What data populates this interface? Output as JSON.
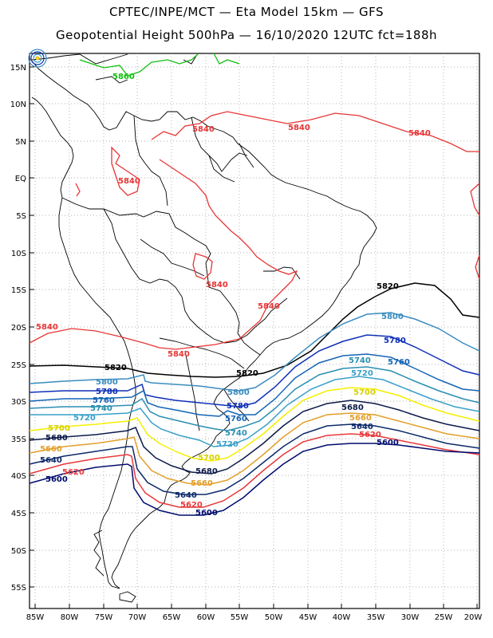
{
  "header": {
    "title_line1": "CPTEC/INPE/MCT —  Eta Model 15km — GFS",
    "title_line2": "Geopotential Height 500hPa — 16/10/2020 12UTC fct=188h"
  },
  "axes": {
    "lat_labels": [
      "15N",
      "10N",
      "5N",
      "EQ",
      "5S",
      "10S",
      "15S",
      "20S",
      "25S",
      "30S",
      "35S",
      "40S",
      "45S",
      "50S",
      "55S"
    ],
    "lon_labels": [
      "85W",
      "80W",
      "75W",
      "70W",
      "65W",
      "60W",
      "55W",
      "50W",
      "45W",
      "40W",
      "35W",
      "30W",
      "25W",
      "20W"
    ]
  },
  "contours": [
    {
      "level": "5600",
      "color": "#000b6e"
    },
    {
      "level": "5620",
      "color": "#e8393b"
    },
    {
      "level": "5640",
      "color": "#0c2a6a"
    },
    {
      "level": "5660",
      "color": "#e2a02a"
    },
    {
      "level": "5680",
      "color": "#0d1b4a"
    },
    {
      "level": "5700",
      "color": "#f5ef00"
    },
    {
      "level": "5720",
      "color": "#3aa0c9"
    },
    {
      "level": "5740",
      "color": "#2a8fb0"
    },
    {
      "level": "5760",
      "color": "#1565b5"
    },
    {
      "level": "5780",
      "color": "#0f2fb8"
    },
    {
      "level": "5800",
      "color": "#3a8cbf"
    },
    {
      "level": "5820",
      "color": "#000000"
    },
    {
      "level": "5840",
      "color": "#e83535"
    },
    {
      "level": "5860",
      "color": "#10c010"
    }
  ],
  "contour_labels": [
    {
      "text": "5860",
      "color": "#10c010"
    },
    {
      "text": "5840",
      "color": "#e83535"
    },
    {
      "text": "5820",
      "color": "#000000"
    },
    {
      "text": "5800",
      "color": "#3a8cbf"
    },
    {
      "text": "5780",
      "color": "#0f2fb8"
    },
    {
      "text": "5760",
      "color": "#1565b5"
    },
    {
      "text": "5740",
      "color": "#2a8fb0"
    },
    {
      "text": "5720",
      "color": "#3aa0c9"
    },
    {
      "text": "5700",
      "color": "#d8d000"
    },
    {
      "text": "5680",
      "color": "#0d1b4a"
    },
    {
      "text": "5660",
      "color": "#e2a02a"
    },
    {
      "text": "5640",
      "color": "#0c2a6a"
    },
    {
      "text": "5620",
      "color": "#e8393b"
    },
    {
      "text": "5600",
      "color": "#000b6e"
    }
  ]
}
